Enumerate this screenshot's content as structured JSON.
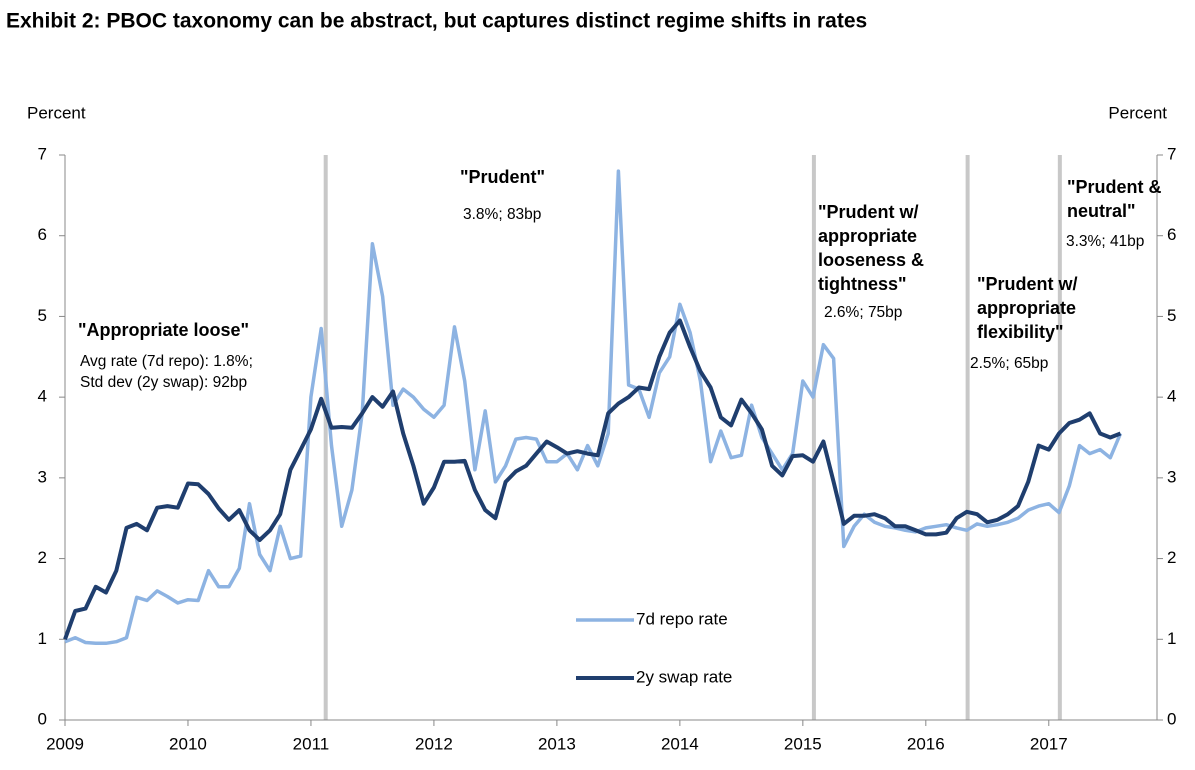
{
  "chart_data": {
    "type": "line",
    "title": "Exhibit 2: PBOC taxonomy can be abstract, but captures distinct regime shifts in rates",
    "y_label": "Percent",
    "y2_label": "Percent",
    "x": [
      2009,
      2009.083,
      2009.167,
      2009.25,
      2009.333,
      2009.417,
      2009.5,
      2009.583,
      2009.667,
      2009.75,
      2009.833,
      2009.917,
      2010,
      2010.083,
      2010.167,
      2010.25,
      2010.333,
      2010.417,
      2010.5,
      2010.583,
      2010.667,
      2010.75,
      2010.833,
      2010.917,
      2011,
      2011.083,
      2011.167,
      2011.25,
      2011.333,
      2011.417,
      2011.5,
      2011.583,
      2011.667,
      2011.75,
      2011.833,
      2011.917,
      2012,
      2012.083,
      2012.167,
      2012.25,
      2012.333,
      2012.417,
      2012.5,
      2012.583,
      2012.667,
      2012.75,
      2012.833,
      2012.917,
      2013,
      2013.083,
      2013.167,
      2013.25,
      2013.333,
      2013.417,
      2013.5,
      2013.583,
      2013.667,
      2013.75,
      2013.833,
      2013.917,
      2014,
      2014.083,
      2014.167,
      2014.25,
      2014.333,
      2014.417,
      2014.5,
      2014.583,
      2014.667,
      2014.75,
      2014.833,
      2014.917,
      2015,
      2015.083,
      2015.167,
      2015.25,
      2015.333,
      2015.417,
      2015.5,
      2015.583,
      2015.667,
      2015.75,
      2015.833,
      2015.917,
      2016,
      2016.083,
      2016.167,
      2016.25,
      2016.333,
      2016.417,
      2016.5,
      2016.583,
      2016.667,
      2016.75,
      2016.833,
      2016.917,
      2017,
      2017.083,
      2017.167,
      2017.25,
      2017.333,
      2017.417,
      2017.5,
      2017.583
    ],
    "series": [
      {
        "name": "7d repo rate",
        "color": "#8db3e2",
        "values": [
          0.97,
          1.02,
          0.96,
          0.95,
          0.95,
          0.97,
          1.02,
          1.52,
          1.48,
          1.6,
          1.53,
          1.45,
          1.49,
          1.48,
          1.85,
          1.65,
          1.65,
          1.88,
          2.68,
          2.05,
          1.85,
          2.4,
          2.0,
          2.03,
          4.0,
          4.85,
          3.4,
          2.4,
          2.85,
          3.8,
          5.9,
          5.25,
          3.9,
          4.1,
          4.0,
          3.85,
          3.75,
          3.9,
          4.87,
          4.2,
          3.1,
          3.83,
          2.95,
          3.15,
          3.48,
          3.5,
          3.48,
          3.2,
          3.2,
          3.3,
          3.1,
          3.4,
          3.15,
          3.55,
          6.8,
          4.15,
          4.1,
          3.75,
          4.3,
          4.5,
          5.15,
          4.8,
          4.2,
          3.2,
          3.58,
          3.25,
          3.28,
          3.9,
          3.5,
          3.3,
          3.1,
          3.3,
          4.2,
          4.0,
          4.65,
          4.48,
          2.15,
          2.4,
          2.55,
          2.45,
          2.4,
          2.38,
          2.35,
          2.33,
          2.38,
          2.4,
          2.42,
          2.38,
          2.35,
          2.43,
          2.4,
          2.42,
          2.45,
          2.5,
          2.6,
          2.65,
          2.68,
          2.57,
          2.9,
          3.4,
          3.3,
          3.35,
          3.25,
          3.55
        ]
      },
      {
        "name": "2y swap rate",
        "color": "#1f3e6e",
        "values": [
          1.0,
          1.35,
          1.38,
          1.65,
          1.58,
          1.85,
          2.38,
          2.43,
          2.35,
          2.63,
          2.65,
          2.63,
          2.93,
          2.92,
          2.8,
          2.62,
          2.48,
          2.6,
          2.35,
          2.23,
          2.35,
          2.55,
          3.1,
          3.35,
          3.6,
          3.98,
          3.62,
          3.63,
          3.62,
          3.8,
          4.0,
          3.88,
          4.07,
          3.55,
          3.15,
          2.68,
          2.88,
          3.2,
          3.2,
          3.21,
          2.85,
          2.6,
          2.5,
          2.95,
          3.08,
          3.15,
          3.3,
          3.45,
          3.38,
          3.3,
          3.33,
          3.3,
          3.28,
          3.8,
          3.92,
          4.0,
          4.12,
          4.1,
          4.5,
          4.8,
          4.95,
          4.62,
          4.32,
          4.12,
          3.75,
          3.65,
          3.97,
          3.8,
          3.6,
          3.15,
          3.03,
          3.27,
          3.28,
          3.2,
          3.45,
          2.95,
          2.43,
          2.53,
          2.53,
          2.55,
          2.5,
          2.4,
          2.4,
          2.35,
          2.3,
          2.3,
          2.32,
          2.5,
          2.58,
          2.55,
          2.45,
          2.48,
          2.55,
          2.65,
          2.95,
          3.4,
          3.35,
          3.55,
          3.68,
          3.72,
          3.8,
          3.55,
          3.5,
          3.55
        ]
      }
    ],
    "xlim": [
      2009,
      2017.88
    ],
    "xticks": [
      2009,
      2010,
      2011,
      2012,
      2013,
      2014,
      2015,
      2016,
      2017
    ],
    "ylim": [
      0,
      7
    ],
    "yticks": [
      0,
      1,
      2,
      3,
      4,
      5,
      6,
      7
    ],
    "y2lim": [
      0,
      7
    ],
    "y2ticks": [
      0,
      1,
      2,
      3,
      4,
      5,
      6,
      7
    ],
    "regime_lines": [
      2011.12,
      2015.09,
      2016.34,
      2017.09
    ],
    "annotations": [
      {
        "heading": [
          "\"Appropriate loose\""
        ],
        "text": [
          "Avg rate (7d repo): 1.8%;",
          "Std dev (2y swap): 92bp"
        ]
      },
      {
        "heading": [
          "\"Prudent\""
        ],
        "text": [
          "3.8%; 83bp"
        ]
      },
      {
        "heading": [
          "\"Prudent w/",
          "appropriate",
          "looseness  &",
          "tightness\""
        ],
        "text": [
          "2.6%; 75bp"
        ]
      },
      {
        "heading": [
          "\"Prudent w/",
          "appropriate",
          "flexibility\""
        ],
        "text": [
          "2.5%; 65bp"
        ]
      },
      {
        "heading": [
          "\"Prudent &",
          "neutral\""
        ],
        "text": [
          "3.3%; 41bp"
        ]
      }
    ],
    "legend": "inside-bottom-center"
  }
}
